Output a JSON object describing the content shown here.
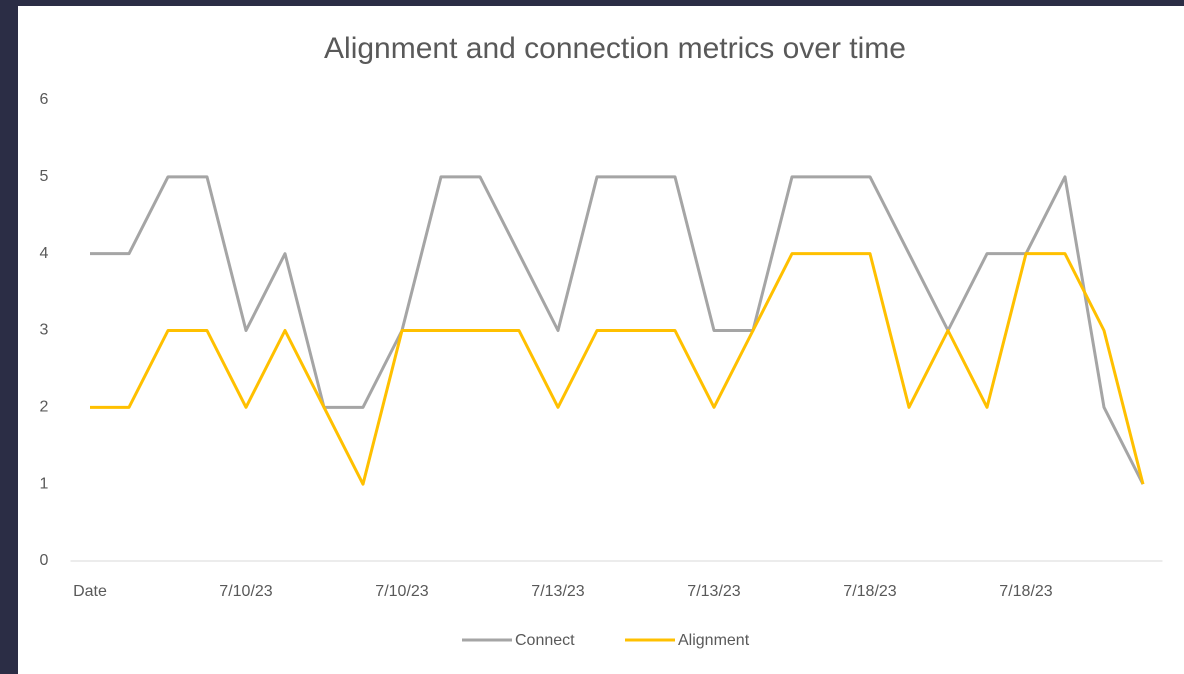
{
  "chart_data": {
    "type": "line",
    "title": "Alignment and connection metrics over time",
    "categories": [
      "Date",
      null,
      null,
      null,
      "7/10/23",
      null,
      null,
      null,
      "7/10/23",
      null,
      null,
      null,
      "7/13/23",
      null,
      null,
      null,
      "7/13/23",
      null,
      null,
      null,
      "7/18/23",
      null,
      null,
      null,
      "7/18/23",
      null,
      null,
      null
    ],
    "series": [
      {
        "name": "Connect",
        "color": "#a5a5a5",
        "values": [
          4,
          4,
          5,
          5,
          3,
          4,
          2,
          2,
          3,
          5,
          5,
          4,
          3,
          5,
          5,
          5,
          3,
          3,
          5,
          5,
          5,
          4,
          3,
          4,
          4,
          5,
          2,
          1
        ]
      },
      {
        "name": "Alignment",
        "color": "#ffc000",
        "values": [
          2,
          2,
          3,
          3,
          2,
          3,
          2,
          1,
          3,
          3,
          3,
          3,
          2,
          3,
          3,
          3,
          2,
          3,
          4,
          4,
          4,
          2,
          3,
          2,
          4,
          4,
          3,
          1
        ]
      }
    ],
    "ylim": [
      0,
      6
    ],
    "yticks": [
      0,
      1,
      2,
      3,
      4,
      5,
      6
    ],
    "grid": false,
    "legend": "bottom"
  }
}
